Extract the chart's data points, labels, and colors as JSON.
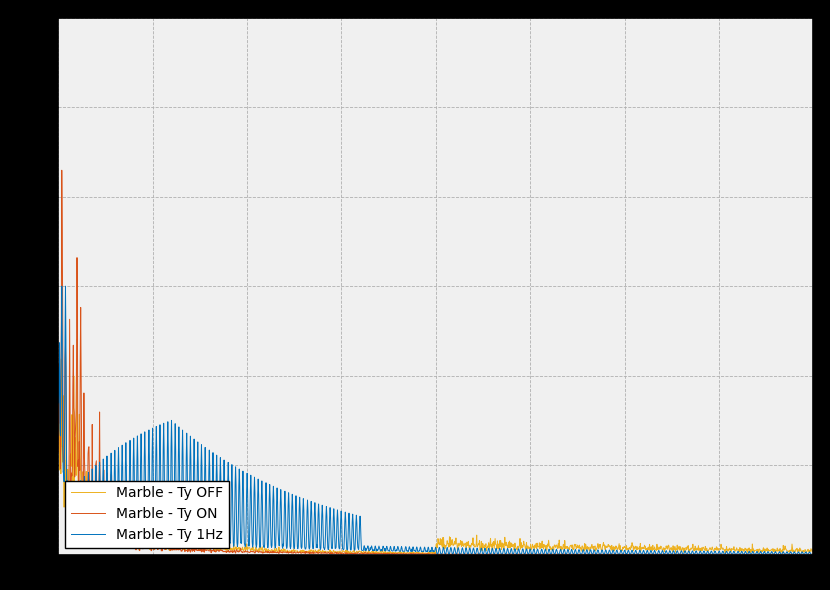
{
  "line1_label": "Marble - Ty 1Hz",
  "line2_label": "Marble - Ty ON",
  "line3_label": "Marble - Ty OFF",
  "line1_color": "#0072BD",
  "line2_color": "#D95319",
  "line3_color": "#EDB120",
  "figure_facecolor": "#000000",
  "axes_facecolor": "#f0f0f0",
  "legend_loc": "lower left",
  "seed": 42,
  "fs": 1000,
  "N_seg": 8192,
  "xlim": [
    0,
    200
  ],
  "ylim": [
    0,
    0.001
  ]
}
